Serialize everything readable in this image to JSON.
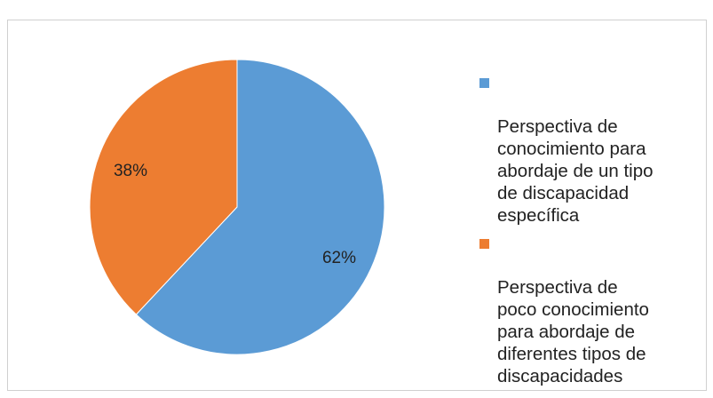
{
  "chart_data": {
    "type": "pie",
    "title": "",
    "series": [
      {
        "name": "",
        "slices": [
          {
            "label": "Perspectiva de\nconocimiento  para\nabordaje de un tipo\nde discapacidad\nespecífica",
            "value": 62,
            "data_label": "62%",
            "color": "#5B9BD5"
          },
          {
            "label": "Perspectiva de\npoco conocimiento\npara abordaje de\ndiferentes tipos de\ndiscapacidades",
            "value": 38,
            "data_label": "38%",
            "color": "#ED7D31"
          }
        ]
      }
    ],
    "legend_position": "right",
    "start_angle": "top",
    "direction": "clockwise"
  }
}
